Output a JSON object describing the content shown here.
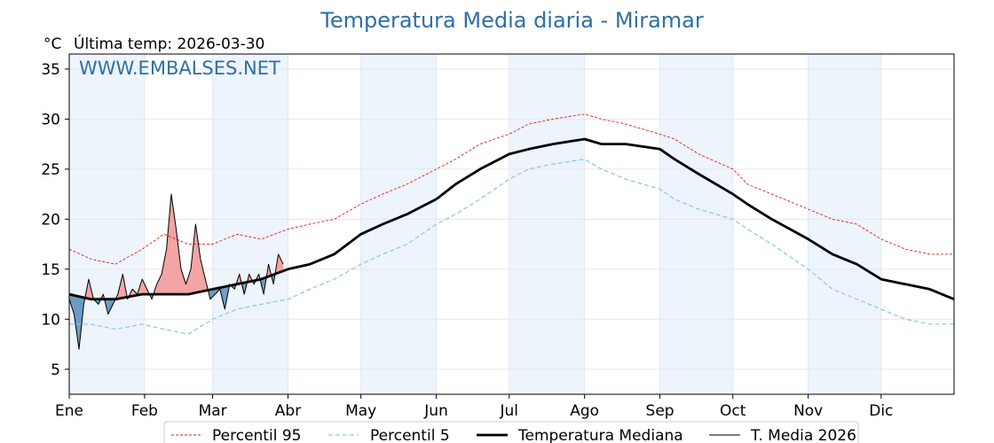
{
  "header": {
    "title": "Temperatura Media diaria - Miramar",
    "unit": "°C",
    "last_temp": "Última temp: 2026-03-30",
    "watermark": "WWW.EMBALSES.NET"
  },
  "legend": {
    "p95": "Percentil 95",
    "p5": "Percentil 5",
    "median": "Temperatura Mediana",
    "current": "T. Media 2026"
  },
  "colors": {
    "p95": "#e31a1c",
    "p5": "#8ecae6",
    "median": "#000000",
    "current": "#000000",
    "above_fill": "#f4a3a3",
    "below_fill": "#6b9bc3",
    "title": "#2e6fa6",
    "band": "#eef4fb"
  },
  "chart_data": {
    "type": "line",
    "x_unit": "day of year",
    "xlim": [
      1,
      365
    ],
    "ylim": [
      2.5,
      36.5
    ],
    "y_ticks": [
      5,
      10,
      15,
      20,
      25,
      30,
      35
    ],
    "x_ticks": [
      {
        "label": "Ene",
        "day": 1
      },
      {
        "label": "Feb",
        "day": 32
      },
      {
        "label": "Mar",
        "day": 60
      },
      {
        "label": "Abr",
        "day": 91
      },
      {
        "label": "May",
        "day": 121
      },
      {
        "label": "Jun",
        "day": 152
      },
      {
        "label": "Jul",
        "day": 182
      },
      {
        "label": "Ago",
        "day": 213
      },
      {
        "label": "Sep",
        "day": 244
      },
      {
        "label": "Oct",
        "day": 274
      },
      {
        "label": "Nov",
        "day": 305
      },
      {
        "label": "Dic",
        "day": 335
      }
    ],
    "grid": true,
    "legend_position": "bottom",
    "series": [
      {
        "name": "Percentil 95",
        "style": "dashed",
        "x": [
          1,
          10,
          20,
          31,
          40,
          50,
          60,
          70,
          80,
          91,
          100,
          110,
          121,
          130,
          140,
          152,
          160,
          170,
          182,
          190,
          200,
          213,
          220,
          230,
          244,
          250,
          260,
          274,
          280,
          290,
          305,
          315,
          325,
          335,
          345,
          355,
          365
        ],
        "values": [
          17.0,
          16.0,
          15.5,
          17.0,
          18.5,
          17.5,
          17.5,
          18.5,
          18.0,
          19.0,
          19.5,
          20.0,
          21.5,
          22.5,
          23.5,
          25.0,
          26.0,
          27.5,
          28.5,
          29.5,
          30.0,
          30.5,
          30.0,
          29.5,
          28.5,
          28.0,
          26.5,
          25.0,
          23.5,
          22.5,
          21.0,
          20.0,
          19.5,
          18.0,
          17.0,
          16.5,
          16.5
        ]
      },
      {
        "name": "Percentil 5",
        "style": "dashed",
        "x": [
          1,
          10,
          20,
          31,
          40,
          50,
          60,
          70,
          80,
          91,
          100,
          110,
          121,
          130,
          140,
          152,
          160,
          170,
          182,
          190,
          200,
          213,
          220,
          230,
          244,
          250,
          260,
          274,
          280,
          290,
          305,
          315,
          325,
          335,
          345,
          355,
          365
        ],
        "values": [
          9.5,
          9.5,
          9.0,
          9.5,
          9.0,
          8.5,
          10.0,
          11.0,
          11.5,
          12.0,
          13.0,
          14.0,
          15.5,
          16.5,
          17.5,
          19.5,
          20.5,
          22.0,
          24.0,
          25.0,
          25.5,
          26.0,
          25.0,
          24.0,
          23.0,
          22.0,
          21.0,
          20.0,
          19.0,
          17.5,
          15.0,
          13.0,
          12.0,
          11.0,
          10.0,
          9.5,
          9.5
        ]
      },
      {
        "name": "Temperatura Mediana",
        "style": "solid-thick",
        "x": [
          1,
          10,
          20,
          31,
          40,
          50,
          60,
          70,
          80,
          91,
          100,
          110,
          121,
          130,
          140,
          152,
          160,
          170,
          182,
          190,
          200,
          213,
          220,
          230,
          244,
          250,
          260,
          274,
          280,
          290,
          305,
          315,
          325,
          335,
          345,
          355,
          365
        ],
        "values": [
          12.5,
          12.0,
          12.0,
          12.5,
          12.5,
          12.5,
          13.0,
          13.5,
          14.0,
          15.0,
          15.5,
          16.5,
          18.5,
          19.5,
          20.5,
          22.0,
          23.5,
          25.0,
          26.5,
          27.0,
          27.5,
          28.0,
          27.5,
          27.5,
          27.0,
          26.0,
          24.5,
          22.5,
          21.5,
          20.0,
          18.0,
          16.5,
          15.5,
          14.0,
          13.5,
          13.0,
          12.0
        ]
      },
      {
        "name": "T. Media 2026",
        "style": "solid-thin",
        "x": [
          1,
          3,
          5,
          7,
          9,
          11,
          13,
          15,
          17,
          19,
          21,
          23,
          25,
          27,
          29,
          31,
          33,
          35,
          37,
          39,
          41,
          43,
          45,
          47,
          49,
          51,
          53,
          55,
          57,
          59,
          61,
          63,
          65,
          67,
          69,
          71,
          73,
          75,
          77,
          79,
          81,
          83,
          85,
          87,
          89
        ],
        "values": [
          12.0,
          10.5,
          7.0,
          11.5,
          14.0,
          12.0,
          11.5,
          12.5,
          10.5,
          11.5,
          12.5,
          14.5,
          12.0,
          13.0,
          12.5,
          14.0,
          13.0,
          12.0,
          13.5,
          14.5,
          17.0,
          22.5,
          19.0,
          15.0,
          13.5,
          15.0,
          19.5,
          16.0,
          14.0,
          12.0,
          12.5,
          13.0,
          11.0,
          13.5,
          13.0,
          14.5,
          12.5,
          14.5,
          13.5,
          14.5,
          12.5,
          15.5,
          13.5,
          16.5,
          15.5
        ]
      }
    ]
  }
}
